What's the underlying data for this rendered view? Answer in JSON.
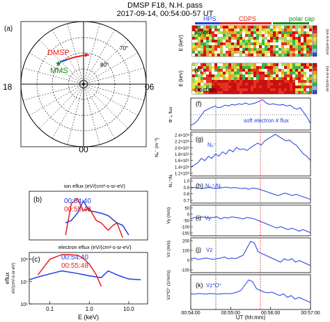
{
  "header": {
    "title": "DMSP F18, N.H. pass",
    "subtitle": "2017-09-14, 00:54:00-57 UT"
  },
  "colors": {
    "blue": "#1f3fe0",
    "red": "#e81e1e",
    "green": "#1a8a1a",
    "hps_bar": "#1f3fe0",
    "cdps_bar": "#e81e1e",
    "polarcap_bar": "#1a8a1a",
    "dotted_black": "#333333",
    "dotted_red": "#e81e1e"
  },
  "panel_a": {
    "label": "(a)",
    "mlt_labels": {
      "left": "18",
      "right": "06",
      "bottom": "00"
    },
    "lat_labels": [
      "70°",
      "80°"
    ],
    "dmsp_label": "DMSP",
    "mms_label": "MMS"
  },
  "panel_b": {
    "label": "(b)",
    "title": "ion eflux (eV/(cm²-s-sr-eV)",
    "time1": "00:54:40",
    "time2": "00:55:48"
  },
  "panel_c": {
    "label": "(c)",
    "title": "electron eflux (eV/(cm²-s-sr-eV)",
    "time1": "00:54:40",
    "time2": "00:55:48",
    "ylabel": "eflux",
    "ylabel2": "eV/(cm²-s-sr-eV)",
    "xlabel": "E (keV)",
    "xticks": [
      "0.1",
      "1.0",
      "10.0"
    ],
    "yticks": [
      "10⁶",
      "10⁷",
      "10⁸"
    ]
  },
  "region_bar": {
    "hps": "HPS",
    "cdps": "CDPS",
    "polar_cap": "polar cap"
  },
  "right_panels": {
    "d_label": "(d)ion",
    "e_label": "(e)",
    "e_text": "electron",
    "f_label": "(f)",
    "f_text": "soft electron # flux",
    "f_ylabel": "Φ⁻ₑ flux",
    "g_label": "(g)",
    "g_text": "Nₑ⁻",
    "g_ylabel": "Nₑ⁻ (m⁻³)",
    "g_yticks": [
      "2.4×10⁶",
      "2.2×10⁶",
      "2.0×10⁶",
      "1.8×10⁶",
      "1.6×10⁶",
      "1.4×10⁶",
      "1.2×10⁶"
    ],
    "h_label": "(h)",
    "h_text": "N₀⁺/Nᵢ",
    "h_ylabel": "N₀⁺/Nᵢ",
    "h_yticks": [
      "1.0",
      "0.9",
      "0.8",
      "0.7"
    ],
    "i_label": "(i)",
    "i_text": "Vy",
    "i_ylabel": "Vy (m/s)",
    "i_yticks": [
      "50",
      "0",
      "-50",
      "-100",
      "-150"
    ],
    "j_label": "(j)",
    "j_text": "Vz",
    "j_ylabel": "Vz (m/s)",
    "j_yticks": [
      "200",
      "100",
      "0",
      "-100"
    ],
    "k_label": "(k)",
    "k_text": "Vz*O⁺",
    "k_ylabel": "Vz*O⁺ (1/m²/s)",
    "de_ylabel": "E (keV)",
    "d_cbar_label": "eV/(cm²-s-sr-eV)",
    "e_cbar_label": "eV/(cm²-s-sr-eV)",
    "xticks": [
      "00:54:00",
      "00:55:00",
      "00:56:00",
      "00:57:00"
    ],
    "xlabel": "UT (hh:mm)"
  },
  "chart_data": [
    {
      "type": "line",
      "panel": "b",
      "title": "ion eflux (eV/(cm²-s-sr-eV)",
      "xscale": "log",
      "series": [
        {
          "name": "00:54:40",
          "x": [
            0.25,
            0.35,
            0.5,
            0.7,
            1.0,
            2.0,
            3.0,
            5.0,
            7.0,
            10.0
          ],
          "y": [
            0.35,
            0.4,
            0.55,
            0.8,
            0.6,
            0.55,
            0.5,
            0.35,
            0.3,
            0.1
          ]
        },
        {
          "name": "00:55:48",
          "x": [
            0.25,
            0.35,
            0.5,
            0.7,
            1.0,
            1.5,
            2.0,
            3.0,
            4.0,
            5.0,
            7.0
          ],
          "y": [
            0.1,
            0.75,
            0.85,
            0.6,
            0.65,
            0.4,
            0.35,
            0.2,
            0.3,
            0.35,
            0.05
          ]
        }
      ]
    },
    {
      "type": "line",
      "panel": "c",
      "title": "electron eflux (eV/(cm²-s-sr-eV)",
      "xlabel": "E (keV)",
      "ylabel": "eflux",
      "xscale": "log",
      "yscale": "log",
      "xlim": [
        0.03,
        30
      ],
      "series": [
        {
          "name": "00:54:40",
          "x": [
            0.03,
            0.05,
            0.1,
            0.2,
            0.5,
            1.0,
            2.0,
            3.0,
            5.0,
            7.0,
            10.0,
            20.0
          ],
          "y": [
            12000000.0,
            16000000.0,
            22000000.0,
            30000000.0,
            23000000.0,
            18000000.0,
            15000000.0,
            30000000.0,
            20000000.0,
            16000000.0,
            13000000.0,
            12000000.0
          ]
        },
        {
          "name": "00:55:48",
          "x": [
            0.05,
            0.1,
            0.2,
            0.3,
            0.5,
            0.7,
            1.0,
            1.5,
            2.0
          ],
          "y": [
            20000000.0,
            100000000.0,
            160000000.0,
            160000000.0,
            150000000.0,
            110000000.0,
            60000000.0,
            20000000.0,
            6000000.0
          ]
        }
      ]
    },
    {
      "type": "line",
      "panel": "f",
      "xrange": [
        "00:54:00",
        "00:57:00"
      ],
      "y": [
        0.15,
        0.2,
        0.3,
        0.45,
        0.6,
        0.65,
        0.7,
        0.75,
        0.7,
        0.72,
        0.78,
        0.75,
        0.8,
        0.78,
        0.82,
        0.8,
        0.85,
        0.8,
        0.82,
        0.85,
        0.9,
        0.95,
        0.85,
        0.8,
        0.82,
        0.8,
        0.78,
        0.8,
        0.75,
        0.78,
        0.7,
        0.65,
        0.7,
        0.55,
        0.4,
        0.2
      ]
    },
    {
      "type": "line",
      "panel": "g",
      "xrange": [
        "00:54:00",
        "00:57:00"
      ],
      "y": [
        0.2,
        0.25,
        0.3,
        0.4,
        0.35,
        0.45,
        0.4,
        0.5,
        0.45,
        0.55,
        0.5,
        0.6,
        0.55,
        0.65,
        0.6,
        0.62,
        0.58,
        0.65,
        0.7,
        0.75,
        0.7,
        0.8,
        0.85,
        0.9,
        0.95,
        0.9,
        0.85,
        0.8,
        0.82,
        0.75,
        0.7,
        0.6,
        0.5,
        0.45,
        0.35
      ]
    },
    {
      "type": "line",
      "panel": "h",
      "xrange": [
        "00:54:00",
        "00:57:00"
      ],
      "y": [
        0.6,
        0.62,
        0.6,
        0.58,
        0.6,
        0.62,
        0.6,
        0.58,
        0.6,
        0.62,
        0.64,
        0.6,
        0.62,
        0.6,
        0.58,
        0.6,
        0.55,
        0.6,
        0.58,
        0.55,
        0.5,
        0.45,
        0.4,
        0.35,
        0.3,
        0.35,
        0.4,
        0.35,
        0.3,
        0.35,
        0.3,
        0.25,
        0.2,
        0.15
      ]
    },
    {
      "type": "line",
      "panel": "i",
      "xrange": [
        "00:54:00",
        "00:57:00"
      ],
      "y": [
        0.55,
        0.6,
        0.58,
        0.62,
        0.6,
        0.58,
        0.6,
        0.62,
        0.55,
        0.6,
        0.58,
        0.62,
        0.6,
        0.58,
        0.55,
        0.6,
        0.58,
        0.55,
        0.5,
        0.45,
        0.4,
        0.35,
        0.3,
        0.25,
        0.3,
        0.25,
        0.2,
        0.25,
        0.2,
        0.15,
        0.2,
        0.15,
        0.1
      ]
    },
    {
      "type": "line",
      "panel": "j",
      "xrange": [
        "00:54:00",
        "00:57:00"
      ],
      "y": [
        0.4,
        0.42,
        0.38,
        0.4,
        0.42,
        0.4,
        0.38,
        0.4,
        0.42,
        0.45,
        0.4,
        0.42,
        0.4,
        0.45,
        0.5,
        0.7,
        0.9,
        0.85,
        0.6,
        0.55,
        0.5,
        0.45,
        0.4,
        0.35,
        0.3,
        0.4,
        0.35,
        0.4,
        0.3,
        0.35,
        0.3,
        0.25,
        0.2
      ]
    },
    {
      "type": "line",
      "panel": "k",
      "xrange": [
        "00:54:00",
        "00:57:00"
      ],
      "y": [
        0.45,
        0.44,
        0.46,
        0.45,
        0.44,
        0.46,
        0.45,
        0.44,
        0.45,
        0.46,
        0.45,
        0.47,
        0.5,
        0.55,
        0.7,
        0.85,
        0.8,
        0.6,
        0.55,
        0.5,
        0.48,
        0.5,
        0.45,
        0.4,
        0.45,
        0.35,
        0.4,
        0.3,
        0.35,
        0.3,
        0.25,
        0.2
      ]
    }
  ]
}
